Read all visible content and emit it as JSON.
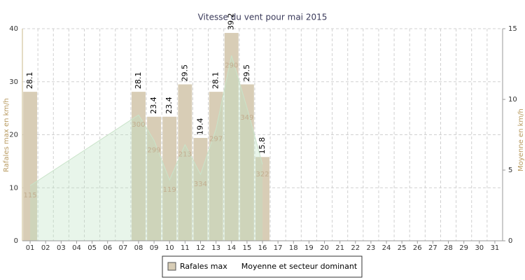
{
  "chart_data": {
    "type": "bar",
    "title": "Vitesse du vent pour mai 2015",
    "y_label": "Rafales max en km/h",
    "y2_label": "Moyenne en km/h",
    "categories": [
      "01",
      "02",
      "03",
      "04",
      "05",
      "06",
      "07",
      "08",
      "09",
      "10",
      "11",
      "12",
      "13",
      "14",
      "15",
      "16",
      "17",
      "18",
      "19",
      "20",
      "21",
      "22",
      "23",
      "24",
      "25",
      "26",
      "27",
      "28",
      "29",
      "30",
      "31"
    ],
    "ylim": [
      0,
      40
    ],
    "yticks": [
      0,
      10,
      20,
      30,
      40
    ],
    "y2lim": [
      0,
      15
    ],
    "y2ticks": [
      0,
      5,
      10,
      15
    ],
    "grid": true,
    "series": [
      {
        "name": "Rafales max",
        "type": "bar",
        "color": "#d8cdb6",
        "values": [
          28.1,
          null,
          null,
          null,
          null,
          null,
          null,
          28.1,
          23.4,
          23.4,
          29.5,
          19.4,
          28.1,
          39.2,
          29.5,
          15.8,
          null,
          null,
          null,
          null,
          null,
          null,
          null,
          null,
          null,
          null,
          null,
          null,
          null,
          null,
          null
        ]
      },
      {
        "name": "Moyenne et secteur dominant",
        "type": "area",
        "axis": "y2",
        "color": "#c9e3c9",
        "x": [
          "01",
          "08",
          "09",
          "10",
          "11",
          "12",
          "13",
          "14",
          "15",
          "16"
        ],
        "values": [
          3.9,
          8.9,
          7.1,
          4.3,
          6.8,
          4.7,
          7.9,
          13.1,
          9.4,
          5.4
        ],
        "direction_labels": [
          "115",
          "300",
          "299",
          "119",
          "213",
          "334",
          "297",
          "290",
          "349",
          "322"
        ]
      }
    ]
  }
}
